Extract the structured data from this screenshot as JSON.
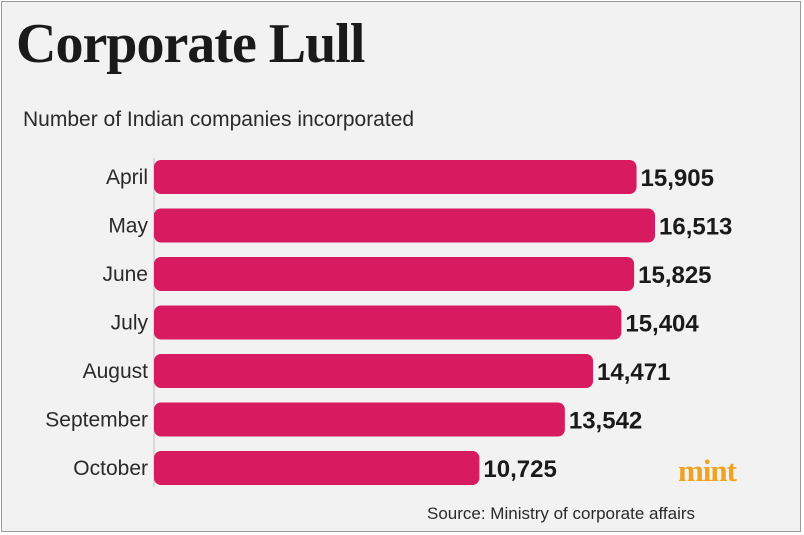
{
  "chart_data": {
    "type": "bar",
    "orientation": "horizontal",
    "title": "Corporate Lull",
    "subtitle": "Number of Indian companies incorporated",
    "categories": [
      "April",
      "May",
      "June",
      "July",
      "August",
      "September",
      "October"
    ],
    "values": [
      15905,
      16513,
      15825,
      15404,
      14471,
      13542,
      10725
    ],
    "value_labels": [
      "15,905",
      "16,513",
      "15,825",
      "15,404",
      "14,471",
      "13,542",
      "10,725"
    ],
    "bar_color": "#d81b60",
    "source": "Source: Ministry of corporate affairs",
    "grid": false,
    "legend": "none"
  },
  "brand": "mint"
}
